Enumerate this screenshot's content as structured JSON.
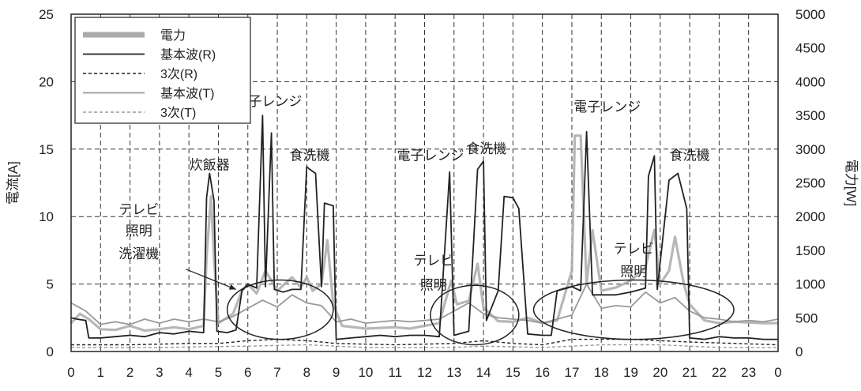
{
  "chart_data": {
    "type": "line",
    "x": {
      "min": 0,
      "max": 24,
      "ticks": [
        "0",
        "1",
        "2",
        "3",
        "4",
        "5",
        "6",
        "7",
        "8",
        "9",
        "10",
        "11",
        "12",
        "13",
        "14",
        "15",
        "16",
        "17",
        "18",
        "19",
        "20",
        "21",
        "22",
        "23",
        "0"
      ]
    },
    "y_left": {
      "label": "電流[A]",
      "min": 0,
      "max": 25,
      "ticks": [
        "0",
        "5",
        "10",
        "15",
        "20",
        "25"
      ]
    },
    "y_right": {
      "label": "電力[W]",
      "min": 0,
      "max": 5000,
      "ticks": [
        "0",
        "500",
        "1000",
        "1500",
        "2000",
        "2500",
        "3000",
        "3500",
        "4000",
        "4500",
        "5000"
      ]
    },
    "grid": true,
    "legend": {
      "placement": "top-left",
      "entries": [
        {
          "name": "電力",
          "color": "#aaaaaa",
          "style": "thick"
        },
        {
          "name": "基本波(R)",
          "color": "#222222",
          "style": "solid"
        },
        {
          "name": "3次(R)",
          "color": "#222222",
          "style": "dashed"
        },
        {
          "name": "基本波(T)",
          "color": "#999999",
          "style": "solid"
        },
        {
          "name": "3次(T)",
          "color": "#999999",
          "style": "dashed"
        }
      ]
    },
    "annotations": [
      {
        "text": "炊飯器",
        "x": 4.7,
        "y": 13.5
      },
      {
        "text": "電子レンジ",
        "x": 6.7,
        "y": 18.2
      },
      {
        "text": "食洗機",
        "x": 8.1,
        "y": 14.2
      },
      {
        "text": "電子レンジ",
        "x": 12.2,
        "y": 14.2
      },
      {
        "text": "食洗機",
        "x": 14.1,
        "y": 14.7
      },
      {
        "text": "電子レンジ",
        "x": 18.2,
        "y": 17.8
      },
      {
        "text": "食洗機",
        "x": 21.0,
        "y": 14.2
      },
      {
        "text": "テレビ",
        "x": 2.3,
        "y": 10.2
      },
      {
        "text": "照明",
        "x": 2.3,
        "y": 8.6
      },
      {
        "text": "洗濯機",
        "x": 2.3,
        "y": 6.9
      },
      {
        "text": "テレビ",
        "x": 12.3,
        "y": 6.4
      },
      {
        "text": "照明",
        "x": 12.3,
        "y": 4.6
      },
      {
        "text": "テレビ",
        "x": 19.1,
        "y": 7.3
      },
      {
        "text": "照明",
        "x": 19.1,
        "y": 5.6
      }
    ],
    "series": [
      {
        "name": "電力",
        "axis": "right",
        "points": [
          [
            0,
            420
          ],
          [
            0.3,
            560
          ],
          [
            0.6,
            480
          ],
          [
            1,
            330
          ],
          [
            1.5,
            320
          ],
          [
            2,
            380
          ],
          [
            2.5,
            310
          ],
          [
            3,
            330
          ],
          [
            3.5,
            360
          ],
          [
            4,
            330
          ],
          [
            4.5,
            380
          ],
          [
            4.6,
            1400
          ],
          [
            4.75,
            2300
          ],
          [
            4.85,
            1400
          ],
          [
            5,
            420
          ],
          [
            5.5,
            560
          ],
          [
            5.8,
            900
          ],
          [
            6,
            1000
          ],
          [
            6.3,
            860
          ],
          [
            6.6,
            1200
          ],
          [
            6.8,
            1050
          ],
          [
            7,
            900
          ],
          [
            7.5,
            1100
          ],
          [
            7.8,
            950
          ],
          [
            8,
            1100
          ],
          [
            8.2,
            900
          ],
          [
            8.5,
            1000
          ],
          [
            8.7,
            1650
          ],
          [
            8.9,
            700
          ],
          [
            9.2,
            380
          ],
          [
            10,
            340
          ],
          [
            10.5,
            350
          ],
          [
            11,
            360
          ],
          [
            11.5,
            340
          ],
          [
            12,
            380
          ],
          [
            12.5,
            420
          ],
          [
            12.9,
            1050
          ],
          [
            13.1,
            700
          ],
          [
            13.5,
            750
          ],
          [
            13.8,
            1300
          ],
          [
            14,
            650
          ],
          [
            14.5,
            450
          ],
          [
            15,
            440
          ],
          [
            15.5,
            500
          ],
          [
            16,
            420
          ],
          [
            16.5,
            460
          ],
          [
            17,
            1200
          ],
          [
            17.1,
            3200
          ],
          [
            17.3,
            3200
          ],
          [
            17.5,
            1000
          ],
          [
            17.7,
            1800
          ],
          [
            18,
            900
          ],
          [
            18.5,
            950
          ],
          [
            19,
            1050
          ],
          [
            19.5,
            1250
          ],
          [
            19.8,
            1800
          ],
          [
            20,
            1000
          ],
          [
            20.3,
            1200
          ],
          [
            20.5,
            1700
          ],
          [
            20.8,
            1000
          ],
          [
            21,
            700
          ],
          [
            21.5,
            460
          ],
          [
            22,
            420
          ],
          [
            22.5,
            440
          ],
          [
            23,
            430
          ],
          [
            23.5,
            420
          ],
          [
            24,
            420
          ]
        ]
      },
      {
        "name": "基本波(R)",
        "axis": "left",
        "points": [
          [
            0,
            2.5
          ],
          [
            0.2,
            2.4
          ],
          [
            0.5,
            2.3
          ],
          [
            0.6,
            1.0
          ],
          [
            1,
            1.0
          ],
          [
            1.5,
            1.1
          ],
          [
            2,
            1.2
          ],
          [
            2.5,
            1.1
          ],
          [
            3,
            1.4
          ],
          [
            3.5,
            1.3
          ],
          [
            4,
            1.5
          ],
          [
            4.5,
            1.4
          ],
          [
            4.6,
            11.4
          ],
          [
            4.7,
            13.2
          ],
          [
            4.85,
            11.2
          ],
          [
            4.95,
            1.5
          ],
          [
            5.3,
            1.4
          ],
          [
            5.6,
            1.6
          ],
          [
            5.8,
            4.5
          ],
          [
            6,
            5.0
          ],
          [
            6.3,
            4.7
          ],
          [
            6.5,
            17.5
          ],
          [
            6.6,
            4.8
          ],
          [
            6.8,
            16.2
          ],
          [
            6.9,
            4.6
          ],
          [
            7.2,
            4.4
          ],
          [
            7.5,
            4.6
          ],
          [
            7.8,
            4.6
          ],
          [
            8,
            13.7
          ],
          [
            8.1,
            13.5
          ],
          [
            8.3,
            13.2
          ],
          [
            8.5,
            4.8
          ],
          [
            8.6,
            11.0
          ],
          [
            8.9,
            10.8
          ],
          [
            9,
            0.9
          ],
          [
            9.5,
            1.0
          ],
          [
            10,
            1.1
          ],
          [
            10.5,
            1.2
          ],
          [
            11,
            1.1
          ],
          [
            11.5,
            1.2
          ],
          [
            12,
            1.2
          ],
          [
            12.5,
            1.1
          ],
          [
            12.85,
            13.3
          ],
          [
            13,
            1.2
          ],
          [
            13.5,
            1.5
          ],
          [
            13.8,
            13.5
          ],
          [
            14,
            14.1
          ],
          [
            14.1,
            2.3
          ],
          [
            14.5,
            4.5
          ],
          [
            14.7,
            11.5
          ],
          [
            15,
            11.4
          ],
          [
            15.2,
            10.6
          ],
          [
            15.5,
            1.3
          ],
          [
            16,
            1.2
          ],
          [
            16.3,
            1.2
          ],
          [
            16.5,
            4.5
          ],
          [
            17,
            4.8
          ],
          [
            17.3,
            4.5
          ],
          [
            17.5,
            16.3
          ],
          [
            17.7,
            4.2
          ],
          [
            18,
            4.2
          ],
          [
            18.5,
            4.2
          ],
          [
            19,
            4.4
          ],
          [
            19.5,
            4.7
          ],
          [
            19.6,
            13.0
          ],
          [
            19.8,
            14.5
          ],
          [
            19.9,
            4.6
          ],
          [
            20.3,
            12.7
          ],
          [
            20.6,
            13.2
          ],
          [
            20.9,
            10.6
          ],
          [
            21,
            1.0
          ],
          [
            21.5,
            0.9
          ],
          [
            22,
            1.1
          ],
          [
            22.5,
            1.0
          ],
          [
            23,
            1.0
          ],
          [
            23.5,
            0.9
          ],
          [
            24,
            0.9
          ]
        ]
      },
      {
        "name": "3次(R)",
        "axis": "left",
        "points": [
          [
            0,
            0.5
          ],
          [
            2,
            0.5
          ],
          [
            4,
            0.6
          ],
          [
            5,
            0.6
          ],
          [
            6,
            0.8
          ],
          [
            7,
            0.9
          ],
          [
            8,
            0.8
          ],
          [
            9,
            0.6
          ],
          [
            11,
            0.5
          ],
          [
            13,
            0.6
          ],
          [
            14,
            0.8
          ],
          [
            15,
            0.6
          ],
          [
            16,
            0.5
          ],
          [
            17,
            0.9
          ],
          [
            19,
            0.9
          ],
          [
            21,
            0.7
          ],
          [
            24,
            0.5
          ]
        ]
      },
      {
        "name": "基本波(T)",
        "axis": "left",
        "points": [
          [
            0,
            3.6
          ],
          [
            0.5,
            3.0
          ],
          [
            1,
            2.0
          ],
          [
            1.5,
            2.2
          ],
          [
            2,
            2.0
          ],
          [
            2.5,
            2.4
          ],
          [
            3,
            2.1
          ],
          [
            3.5,
            2.4
          ],
          [
            4,
            2.2
          ],
          [
            4.5,
            2.4
          ],
          [
            5,
            2.2
          ],
          [
            5.5,
            2.6
          ],
          [
            6,
            3.2
          ],
          [
            6.5,
            3.8
          ],
          [
            7,
            3.3
          ],
          [
            7.5,
            4.2
          ],
          [
            8,
            3.6
          ],
          [
            8.5,
            3.4
          ],
          [
            9,
            2.2
          ],
          [
            9.5,
            2.4
          ],
          [
            10,
            2.1
          ],
          [
            10.5,
            2.2
          ],
          [
            11,
            2.3
          ],
          [
            11.5,
            2.2
          ],
          [
            12,
            2.3
          ],
          [
            12.5,
            2.4
          ],
          [
            13,
            3.0
          ],
          [
            13.5,
            3.6
          ],
          [
            14,
            2.8
          ],
          [
            14.5,
            2.5
          ],
          [
            15,
            2.4
          ],
          [
            15.5,
            2.3
          ],
          [
            16,
            2.1
          ],
          [
            16.5,
            2.4
          ],
          [
            17,
            2.7
          ],
          [
            17.5,
            5.0
          ],
          [
            18,
            3.2
          ],
          [
            18.5,
            3.4
          ],
          [
            19,
            3.3
          ],
          [
            19.5,
            4.4
          ],
          [
            20,
            3.6
          ],
          [
            20.5,
            4.0
          ],
          [
            21,
            3.0
          ],
          [
            21.5,
            2.5
          ],
          [
            22,
            2.4
          ],
          [
            22.5,
            2.2
          ],
          [
            23,
            2.3
          ],
          [
            23.5,
            2.2
          ],
          [
            24,
            2.4
          ]
        ]
      },
      {
        "name": "3次(T)",
        "axis": "left",
        "points": [
          [
            0,
            0.3
          ],
          [
            3,
            0.3
          ],
          [
            6,
            0.4
          ],
          [
            8,
            0.5
          ],
          [
            10,
            0.3
          ],
          [
            13,
            0.3
          ],
          [
            14,
            0.4
          ],
          [
            16,
            0.3
          ],
          [
            18,
            0.5
          ],
          [
            20,
            0.5
          ],
          [
            22,
            0.3
          ],
          [
            24,
            0.3
          ]
        ]
      }
    ]
  }
}
